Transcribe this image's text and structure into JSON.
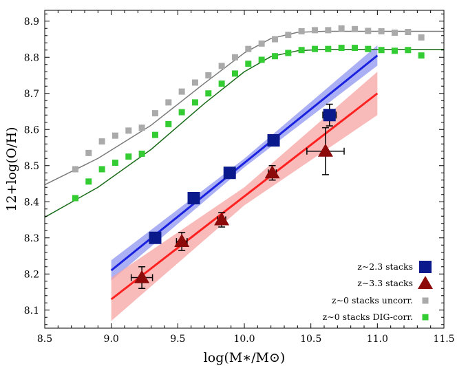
{
  "chart_data": {
    "type": "scatter",
    "xlabel": "log(M∗/M⊙)",
    "ylabel": "12+log(O/H)",
    "xlim": [
      8.5,
      11.5
    ],
    "ylim": [
      8.05,
      8.93
    ],
    "x_ticks": [
      "8.5",
      "9.0",
      "9.5",
      "10.0",
      "10.5",
      "11.0",
      "11.5"
    ],
    "y_ticks": [
      "8.1",
      "8.2",
      "8.3",
      "8.4",
      "8.5",
      "8.6",
      "8.7",
      "8.8",
      "8.9"
    ],
    "x_tick_values": [
      8.5,
      9.0,
      9.5,
      10.0,
      10.5,
      11.0,
      11.5
    ],
    "y_tick_values": [
      8.1,
      8.2,
      8.3,
      8.4,
      8.5,
      8.6,
      8.7,
      8.8,
      8.9
    ],
    "grid": false,
    "legend_position": "bottom-right",
    "series": [
      {
        "name": "z∼2.3 stacks",
        "marker": "square",
        "color": "#0a1a8c",
        "x": [
          9.33,
          9.62,
          9.89,
          10.22,
          10.64
        ],
        "y": [
          8.3,
          8.41,
          8.48,
          8.57,
          8.64
        ],
        "yerr": [
          0,
          0,
          0,
          0,
          0.03
        ],
        "xerr": [
          0,
          0,
          0,
          0,
          0.05
        ],
        "fit": {
          "x": [
            9.0,
            11.0
          ],
          "y": [
            8.21,
            8.805
          ],
          "band": [
            0.012,
            0.028
          ],
          "line_color": "#1a22e0",
          "band_color": "#8f95f0"
        }
      },
      {
        "name": "z∼3.3 stacks",
        "marker": "triangle",
        "color": "#8c0a0a",
        "x": [
          9.23,
          9.53,
          9.83,
          10.21,
          10.61
        ],
        "y": [
          8.19,
          8.29,
          8.35,
          8.48,
          8.54
        ],
        "yerr": [
          0.03,
          0.025,
          0.02,
          0.02,
          0.065
        ],
        "xerr": [
          0.08,
          0.04,
          0.03,
          0.03,
          0.14
        ],
        "fit": {
          "x": [
            9.0,
            11.0
          ],
          "y": [
            8.13,
            8.7
          ],
          "band": [
            0.025,
            0.06
          ],
          "line_color": "#ff2020",
          "band_color": "#f7a3a3"
        }
      },
      {
        "name": "z∼0 stacks uncorr.",
        "marker": "small-square",
        "color": "#aaaaaa",
        "x": [
          8.73,
          8.83,
          8.93,
          9.03,
          9.13,
          9.23,
          9.33,
          9.43,
          9.53,
          9.63,
          9.73,
          9.83,
          9.93,
          10.03,
          10.13,
          10.23,
          10.33,
          10.43,
          10.53,
          10.63,
          10.73,
          10.83,
          10.93,
          11.03,
          11.13,
          11.23,
          11.33
        ],
        "y": [
          8.49,
          8.535,
          8.567,
          8.583,
          8.597,
          8.605,
          8.645,
          8.675,
          8.705,
          8.73,
          8.75,
          8.776,
          8.8,
          8.823,
          8.838,
          8.85,
          8.862,
          8.872,
          8.875,
          8.875,
          8.88,
          8.878,
          8.873,
          8.872,
          8.868,
          8.87,
          8.855
        ],
        "fit": {
          "x": [
            8.5,
            8.9,
            9.3,
            9.7,
            10.0,
            10.2,
            10.4,
            10.6,
            11.0,
            11.5
          ],
          "y": [
            8.447,
            8.52,
            8.612,
            8.728,
            8.812,
            8.852,
            8.869,
            8.872,
            8.872,
            8.872
          ],
          "line_color": "#7a7a7a"
        }
      },
      {
        "name": "z∼0 stacks DIG-corr.",
        "marker": "small-square",
        "color": "#33cc33",
        "x": [
          8.73,
          8.83,
          8.93,
          9.03,
          9.13,
          9.23,
          9.33,
          9.43,
          9.53,
          9.63,
          9.73,
          9.83,
          9.93,
          10.03,
          10.13,
          10.23,
          10.33,
          10.43,
          10.53,
          10.63,
          10.73,
          10.83,
          10.93,
          11.03,
          11.13,
          11.23,
          11.33
        ],
        "y": [
          8.41,
          8.456,
          8.49,
          8.508,
          8.525,
          8.533,
          8.585,
          8.615,
          8.648,
          8.675,
          8.7,
          8.727,
          8.755,
          8.782,
          8.793,
          8.803,
          8.812,
          8.82,
          8.823,
          8.823,
          8.826,
          8.826,
          8.823,
          8.82,
          8.818,
          8.82,
          8.805
        ],
        "fit": {
          "x": [
            8.5,
            8.9,
            9.3,
            9.7,
            10.0,
            10.2,
            10.4,
            10.6,
            11.0,
            11.5
          ],
          "y": [
            8.357,
            8.44,
            8.545,
            8.672,
            8.76,
            8.802,
            8.818,
            8.822,
            8.822,
            8.822
          ],
          "line_color": "#1a6b1a"
        }
      }
    ]
  }
}
